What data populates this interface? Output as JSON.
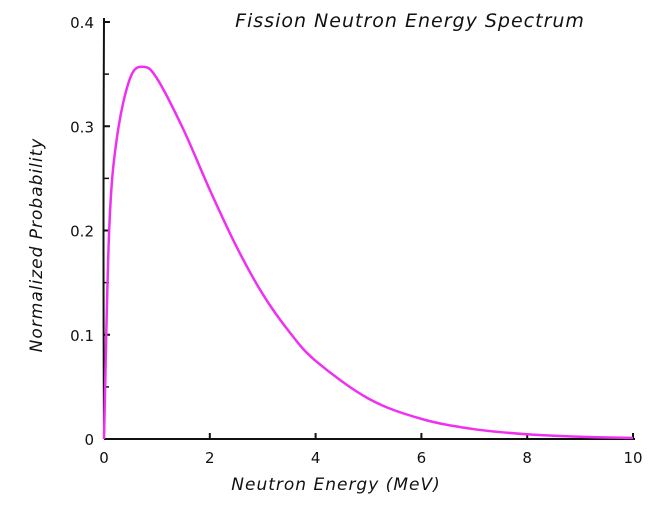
{
  "chart_data": {
    "type": "line",
    "title": "Fission Neutron Energy Spectrum",
    "xlabel": "Neutron Energy (MeV)",
    "ylabel": "Normalized Probability",
    "xlim": [
      0,
      10
    ],
    "ylim": [
      0,
      0.4
    ],
    "xticks": [
      "0",
      "2",
      "4",
      "6",
      "8",
      "10"
    ],
    "yticks": [
      "0",
      "0.1",
      "0.2",
      "0.3",
      "0.4"
    ],
    "grid": false,
    "style": "hand-drawn",
    "series": [
      {
        "color": "#f030f0",
        "x": [
          0,
          0.1,
          0.25,
          0.5,
          0.75,
          1,
          1.5,
          2,
          2.5,
          3,
          3.5,
          4,
          5,
          6,
          7,
          8,
          9,
          10
        ],
        "y": [
          0,
          0.203,
          0.291,
          0.347,
          0.357,
          0.346,
          0.297,
          0.239,
          0.185,
          0.139,
          0.103,
          0.075,
          0.0387,
          0.0193,
          0.0094,
          0.0045,
          0.0021,
          0.001
        ]
      }
    ]
  }
}
